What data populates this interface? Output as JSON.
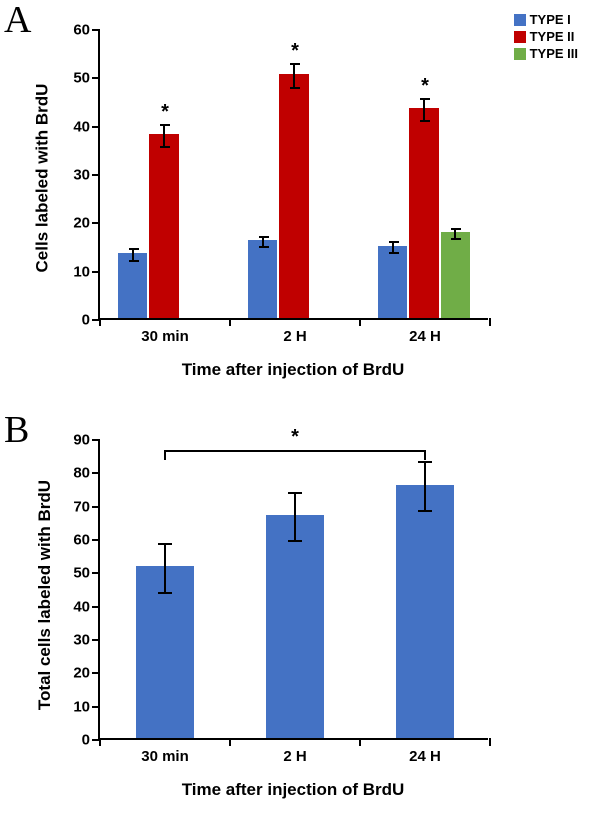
{
  "panelA": {
    "label": "A",
    "label_fontsize": 38,
    "chart": {
      "type": "bar",
      "categories": [
        "30 min",
        "2 H",
        "24 H"
      ],
      "series": [
        {
          "name": "TYPE I",
          "color": "#4472c4",
          "values": [
            13.5,
            16.2,
            15.0
          ],
          "errors": [
            1.2,
            1.0,
            1.2
          ]
        },
        {
          "name": "TYPE II",
          "color": "#c00000",
          "values": [
            38.0,
            50.5,
            43.5
          ],
          "errors": [
            2.3,
            2.5,
            2.3
          ],
          "sig": [
            "*",
            "*",
            "*"
          ]
        },
        {
          "name": "TYPE III",
          "color": "#70ad47",
          "values": [
            0,
            0,
            17.8
          ],
          "errors": [
            0,
            0,
            1.1
          ]
        }
      ],
      "ylabel": "Cells labeled with BrdU",
      "xlabel": "Time after injection of BrdU",
      "ylim": [
        0,
        60
      ],
      "ytick_step": 10,
      "label_fontsize": 17,
      "tick_fontsize": 15,
      "bar_gap": 0.05,
      "group_gap": 0.25,
      "background_color": "#ffffff",
      "axis_color": "#000000"
    },
    "legend": {
      "items": [
        {
          "swatch": "#4472c4",
          "label": "TYPE I"
        },
        {
          "swatch": "#c00000",
          "label": "TYPE II"
        },
        {
          "swatch": "#70ad47",
          "label": "TYPE III"
        }
      ],
      "fontsize": 13
    }
  },
  "panelB": {
    "label": "B",
    "chart": {
      "type": "bar",
      "categories": [
        "30 min",
        "2 H",
        "24 H"
      ],
      "values": [
        51.5,
        67.0,
        76.0
      ],
      "errors": [
        7.3,
        7.2,
        7.3
      ],
      "bar_color": "#4472c4",
      "ylabel": "Total cells labeled with BrdU",
      "xlabel": "Time after injection of BrdU",
      "ylim": [
        0,
        90
      ],
      "ytick_step": 10,
      "label_fontsize": 17,
      "tick_fontsize": 15,
      "bar_width": 0.45,
      "background_color": "#ffffff",
      "axis_color": "#000000"
    },
    "significance_bracket": {
      "from_category": "30 min",
      "to_category": "24 H",
      "y": 87,
      "drop": 3,
      "label": "*"
    }
  }
}
